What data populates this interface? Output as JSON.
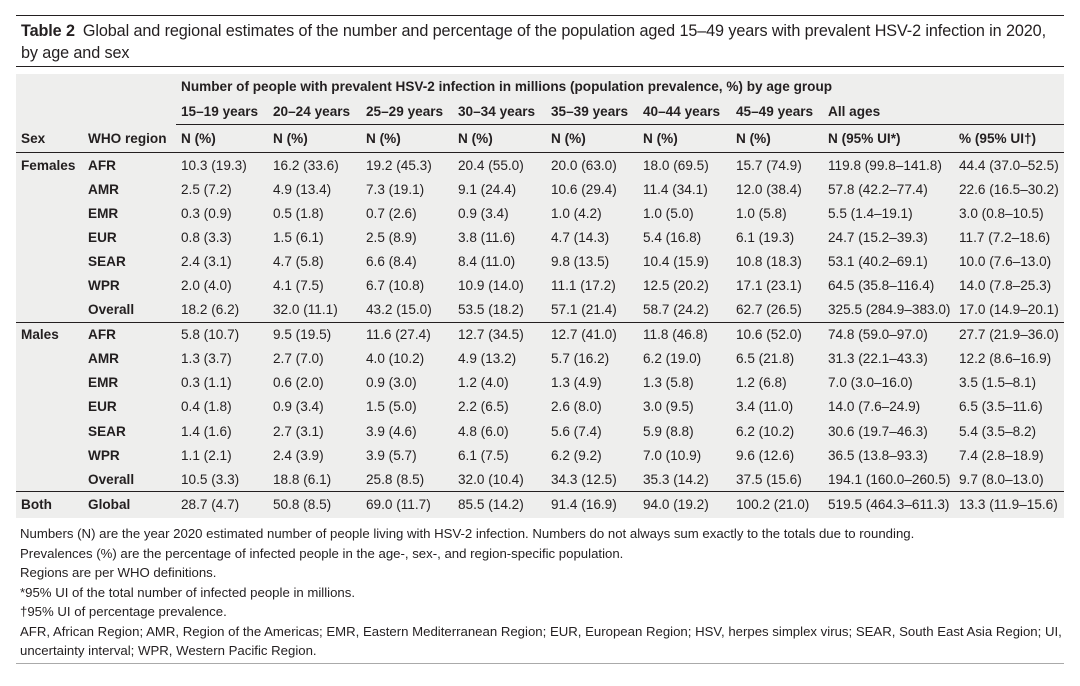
{
  "table": {
    "label": "Table 2",
    "title": "Global and regional estimates of the number and percentage of the population aged 15–49 years with prevalent HSV-2 infection in 2020, by age and sex",
    "spanning_header": "Number of people with prevalent HSV-2 infection in millions (population prevalence, %) by age group",
    "age_groups": [
      "15–19 years",
      "20–24 years",
      "25–29 years",
      "30–34 years",
      "35–39 years",
      "40–44 years",
      "45–49 years",
      "All ages"
    ],
    "col_sex": "Sex",
    "col_region": "WHO region",
    "col_units": [
      "N (%)",
      "N (%)",
      "N (%)",
      "N (%)",
      "N (%)",
      "N (%)",
      "N (%)",
      "N (95% UI*)",
      "% (95% UI†)"
    ],
    "sections": [
      {
        "sex": "Females",
        "rows": [
          {
            "region": "AFR",
            "cells": [
              "10.3 (19.3)",
              "16.2 (33.6)",
              "19.2 (45.3)",
              "20.4 (55.0)",
              "20.0 (63.0)",
              "18.0 (69.5)",
              "15.7 (74.9)",
              "119.8 (99.8–141.8)",
              "44.4 (37.0–52.5)"
            ]
          },
          {
            "region": "AMR",
            "cells": [
              "2.5 (7.2)",
              "4.9 (13.4)",
              "7.3 (19.1)",
              "9.1 (24.4)",
              "10.6 (29.4)",
              "11.4 (34.1)",
              "12.0 (38.4)",
              "57.8 (42.2–77.4)",
              "22.6 (16.5–30.2)"
            ]
          },
          {
            "region": "EMR",
            "cells": [
              "0.3 (0.9)",
              "0.5 (1.8)",
              "0.7 (2.6)",
              "0.9 (3.4)",
              "1.0 (4.2)",
              "1.0 (5.0)",
              "1.0 (5.8)",
              "5.5 (1.4–19.1)",
              "3.0 (0.8–10.5)"
            ]
          },
          {
            "region": "EUR",
            "cells": [
              "0.8 (3.3)",
              "1.5 (6.1)",
              "2.5 (8.9)",
              "3.8 (11.6)",
              "4.7 (14.3)",
              "5.4 (16.8)",
              "6.1 (19.3)",
              "24.7 (15.2–39.3)",
              "11.7 (7.2–18.6)"
            ]
          },
          {
            "region": "SEAR",
            "cells": [
              "2.4 (3.1)",
              "4.7 (5.8)",
              "6.6 (8.4)",
              "8.4 (11.0)",
              "9.8 (13.5)",
              "10.4 (15.9)",
              "10.8 (18.3)",
              "53.1 (40.2–69.1)",
              "10.0 (7.6–13.0)"
            ]
          },
          {
            "region": "WPR",
            "cells": [
              "2.0 (4.0)",
              "4.1 (7.5)",
              "6.7 (10.8)",
              "10.9 (14.0)",
              "11.1 (17.2)",
              "12.5 (20.2)",
              "17.1 (23.1)",
              "64.5 (35.8–116.4)",
              "14.0 (7.8–25.3)"
            ]
          },
          {
            "region": "Overall",
            "cells": [
              "18.2 (6.2)",
              "32.0 (11.1)",
              "43.2 (15.0)",
              "53.5 (18.2)",
              "57.1 (21.4)",
              "58.7 (24.2)",
              "62.7 (26.5)",
              "325.5 (284.9–383.0)",
              "17.0 (14.9–20.1)"
            ]
          }
        ]
      },
      {
        "sex": "Males",
        "rows": [
          {
            "region": "AFR",
            "cells": [
              "5.8 (10.7)",
              "9.5 (19.5)",
              "11.6 (27.4)",
              "12.7 (34.5)",
              "12.7 (41.0)",
              "11.8 (46.8)",
              "10.6 (52.0)",
              "74.8 (59.0–97.0)",
              "27.7 (21.9–36.0)"
            ]
          },
          {
            "region": "AMR",
            "cells": [
              "1.3 (3.7)",
              "2.7 (7.0)",
              "4.0 (10.2)",
              "4.9 (13.2)",
              "5.7 (16.2)",
              "6.2 (19.0)",
              "6.5 (21.8)",
              "31.3 (22.1–43.3)",
              "12.2 (8.6–16.9)"
            ]
          },
          {
            "region": "EMR",
            "cells": [
              "0.3 (1.1)",
              "0.6 (2.0)",
              "0.9 (3.0)",
              "1.2 (4.0)",
              "1.3 (4.9)",
              "1.3 (5.8)",
              "1.2 (6.8)",
              "7.0 (3.0–16.0)",
              "3.5 (1.5–8.1)"
            ]
          },
          {
            "region": "EUR",
            "cells": [
              "0.4 (1.8)",
              "0.9 (3.4)",
              "1.5 (5.0)",
              "2.2 (6.5)",
              "2.6 (8.0)",
              "3.0 (9.5)",
              "3.4 (11.0)",
              "14.0 (7.6–24.9)",
              "6.5 (3.5–11.6)"
            ]
          },
          {
            "region": "SEAR",
            "cells": [
              "1.4 (1.6)",
              "2.7 (3.1)",
              "3.9 (4.6)",
              "4.8 (6.0)",
              "5.6 (7.4)",
              "5.9 (8.8)",
              "6.2 (10.2)",
              "30.6 (19.7–46.3)",
              "5.4 (3.5–8.2)"
            ]
          },
          {
            "region": "WPR",
            "cells": [
              "1.1 (2.1)",
              "2.4 (3.9)",
              "3.9 (5.7)",
              "6.1 (7.5)",
              "6.2 (9.2)",
              "7.0 (10.9)",
              "9.6 (12.6)",
              "36.5 (13.8–93.3)",
              "7.4 (2.8–18.9)"
            ]
          },
          {
            "region": "Overall",
            "cells": [
              "10.5 (3.3)",
              "18.8 (6.1)",
              "25.8 (8.5)",
              "32.0 (10.4)",
              "34.3 (12.5)",
              "35.3 (14.2)",
              "37.5 (15.6)",
              "194.1 (160.0–260.5)",
              "9.7 (8.0–13.0)"
            ]
          }
        ]
      },
      {
        "sex": "Both",
        "rows": [
          {
            "region": "Global",
            "cells": [
              "28.7 (4.7)",
              "50.8 (8.5)",
              "69.0 (11.7)",
              "85.5 (14.2)",
              "91.4 (16.9)",
              "94.0 (19.2)",
              "100.2 (21.0)",
              "519.5 (464.3–611.3)",
              "13.3 (11.9–15.6)"
            ]
          }
        ]
      }
    ]
  },
  "notes": [
    "Numbers (N) are the year 2020 estimated number of people living with HSV-2 infection. Numbers do not always sum exactly to the totals due to rounding.",
    "Prevalences (%) are the percentage of infected people in the age-, sex-, and region-specific population.",
    "Regions are per WHO definitions.",
    "*95% UI of the total number of infected people in millions.",
    "†95% UI of percentage prevalence.",
    "AFR, African Region; AMR, Region of the Americas; EMR, Eastern Mediterranean Region; EUR, European Region; HSV, herpes simplex virus; SEAR, South East Asia Region; UI,",
    "uncertainty interval; WPR, Western Pacific Region."
  ]
}
